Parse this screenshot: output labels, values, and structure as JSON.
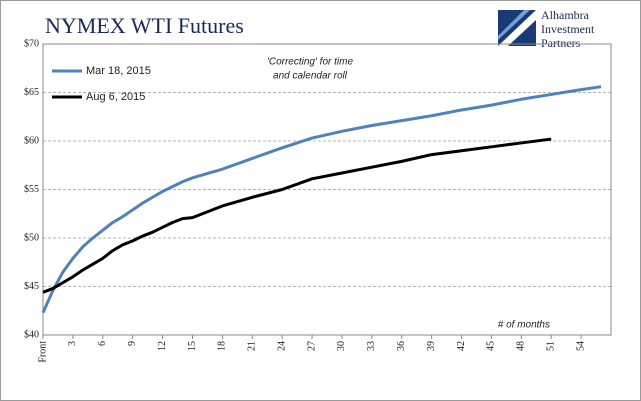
{
  "chart_data": {
    "type": "line",
    "title": "NYMEX WTI Futures",
    "logo": [
      "Alhambra",
      "Investment",
      "Partners"
    ],
    "annotation": [
      "'Correcting' for time",
      "and calendar roll"
    ],
    "x_axis_label": "# of months",
    "x": [
      0,
      1,
      2,
      3,
      4,
      5,
      6,
      7,
      8,
      9,
      10,
      11,
      12,
      13,
      14,
      15,
      18,
      21,
      24,
      27,
      30,
      33,
      36,
      39,
      42,
      45,
      48,
      51,
      54,
      56
    ],
    "series": [
      {
        "name": "Mar 18, 2015",
        "color": "#4f81bd",
        "values": [
          42.3,
          44.6,
          46.5,
          47.9,
          49.1,
          50.0,
          50.8,
          51.6,
          52.2,
          52.9,
          53.6,
          54.2,
          54.8,
          55.3,
          55.8,
          56.2,
          57.1,
          58.2,
          59.3,
          60.3,
          61.0,
          61.6,
          62.1,
          62.6,
          63.2,
          63.7,
          64.3,
          64.8,
          65.3,
          65.6
        ]
      },
      {
        "name": "Aug 6, 2015",
        "color": "#000000",
        "values": [
          44.4,
          44.8,
          45.4,
          46.0,
          46.7,
          47.3,
          47.9,
          48.7,
          49.3,
          49.7,
          50.2,
          50.6,
          51.1,
          51.6,
          52.0,
          52.1,
          53.3,
          54.2,
          55.0,
          56.1,
          56.7,
          57.3,
          57.9,
          58.6,
          59.0,
          59.4,
          59.8,
          60.2,
          null,
          null
        ]
      }
    ],
    "xlim": [
      0,
      57
    ],
    "xticks": [
      {
        "value": 0,
        "label": "Front"
      },
      3,
      6,
      9,
      12,
      15,
      18,
      21,
      24,
      27,
      30,
      33,
      36,
      39,
      42,
      45,
      48,
      51,
      54
    ],
    "ylim": [
      40,
      70
    ],
    "yticks": [
      {
        "value": 40,
        "label": "$40"
      },
      {
        "value": 45,
        "label": "$45"
      },
      {
        "value": 50,
        "label": "$50"
      },
      {
        "value": 55,
        "label": "$55"
      },
      {
        "value": 60,
        "label": "$60"
      },
      {
        "value": 65,
        "label": "$65"
      },
      {
        "value": 70,
        "label": "$70"
      }
    ],
    "grid": true,
    "legend": "upper-left"
  }
}
